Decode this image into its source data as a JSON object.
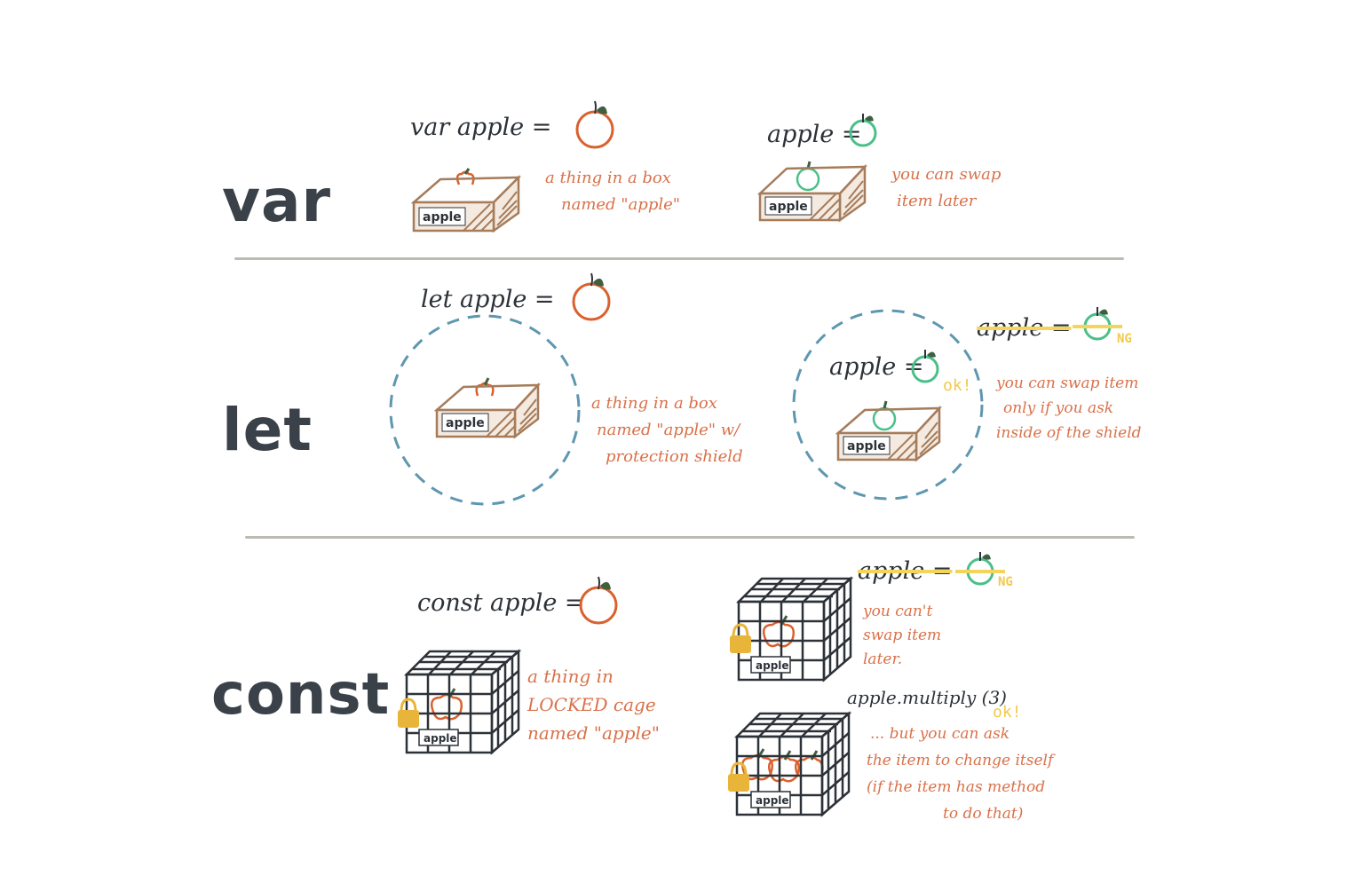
{
  "sections": {
    "var": {
      "keyword": "var",
      "declaration": "var apple =",
      "box_label": "apple",
      "note1": [
        "a thing in a box",
        "named \"apple\""
      ],
      "reassign": "apple =",
      "box_label2": "apple",
      "note2": [
        "you can swap",
        "item later"
      ]
    },
    "let": {
      "keyword": "let",
      "declaration": "let apple =",
      "box_label": "apple",
      "note1": [
        "a thing in a box",
        "named \"apple\" w/",
        "protection shield"
      ],
      "outside_reassign": "apple =",
      "outside_status": "NG",
      "inside_reassign": "apple =",
      "inside_status": "ok!",
      "box_label2": "apple",
      "note2": [
        "you can swap item",
        "only if you ask",
        "inside of the shield"
      ]
    },
    "const": {
      "keyword": "const",
      "declaration": "const apple =",
      "cage_label": "apple",
      "note1": [
        "a thing in",
        "LOCKED cage",
        "named \"apple\""
      ],
      "reassign": "apple =",
      "reassign_status": "NG",
      "cage_label2": "apple",
      "note2": [
        "you can't",
        "swap item",
        "later."
      ],
      "method_call": "apple.multiply (3)",
      "method_status": "ok!",
      "cage_label3": "apple",
      "note3": [
        "... but you can ask",
        "the item to change itself",
        "(if the item has method",
        "to do that)"
      ]
    }
  },
  "colors": {
    "ink": "#2d3238",
    "apple_red": "#d9612e",
    "apple_green": "#4bbf8a",
    "note_orange": "#d9714a",
    "shield_blue": "#5e97b0",
    "highlight_yellow": "#f2d55a",
    "box_brown": "#a67c5b",
    "lock_gold": "#e8b53a",
    "divider": "#bcbab3"
  }
}
